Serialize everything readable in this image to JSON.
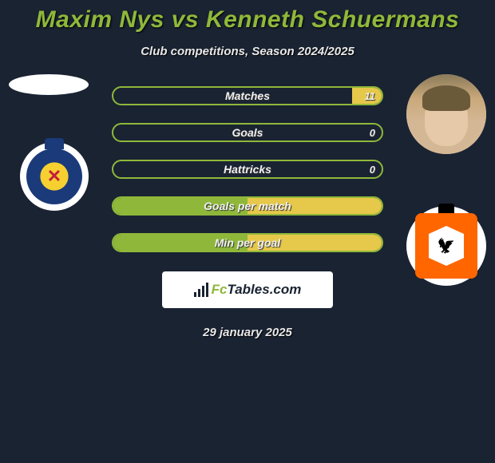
{
  "title": "Maxim Nys vs Kenneth Schuermans",
  "subtitle": "Club competitions, Season 2024/2025",
  "date": "29 january 2025",
  "brand": {
    "prefix": "Fc",
    "suffix": "Tables.com"
  },
  "colors": {
    "accent_green": "#8fb83a",
    "accent_yellow": "#e6c84a",
    "background": "#1a2332"
  },
  "stats": {
    "type": "comparison-bars",
    "bar_border_color": "#8fb83a",
    "left_fill_color": "#8fb83a",
    "right_fill_color": "#e6c84a",
    "label_fontsize": 14,
    "rows": [
      {
        "label": "Matches",
        "left_value": "",
        "right_value": "11",
        "left_pct": 0,
        "right_pct": 11
      },
      {
        "label": "Goals",
        "left_value": "",
        "right_value": "0",
        "left_pct": 0,
        "right_pct": 0
      },
      {
        "label": "Hattricks",
        "left_value": "",
        "right_value": "0",
        "left_pct": 0,
        "right_pct": 0
      },
      {
        "label": "Goals per match",
        "left_value": "",
        "right_value": "",
        "left_pct": 50,
        "right_pct": 50
      },
      {
        "label": "Min per goal",
        "left_value": "",
        "right_value": "",
        "left_pct": 50,
        "right_pct": 50
      }
    ]
  }
}
